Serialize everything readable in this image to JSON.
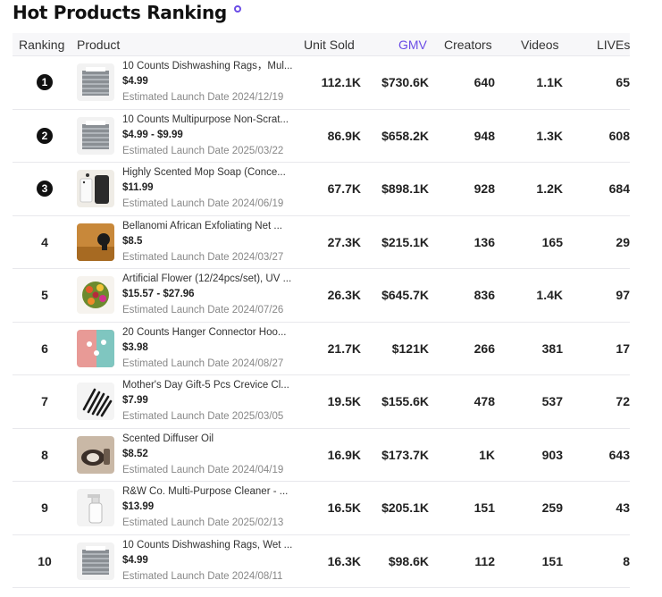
{
  "title": "Hot Products Ranking",
  "columns": {
    "ranking": "Ranking",
    "product": "Product",
    "unit_sold": "Unit Sold",
    "gmv": "GMV",
    "creators": "Creators",
    "videos": "Videos",
    "lives": "LIVEs"
  },
  "colors": {
    "accent": "#6b4de6"
  },
  "rows": [
    {
      "rank": "1",
      "name": "10 Counts Dishwashing Rags，Mul...",
      "price": "$4.99",
      "date": "Estimated Launch Date 2024/12/19",
      "unit_sold": "112.1K",
      "gmv": "$730.6K",
      "creators": "640",
      "videos": "1.1K",
      "lives": "65",
      "thumb": "rags"
    },
    {
      "rank": "2",
      "name": "10 Counts Multipurpose Non-Scrat...",
      "price": "$4.99 - $9.99",
      "date": "Estimated Launch Date 2025/03/22",
      "unit_sold": "86.9K",
      "gmv": "$658.2K",
      "creators": "948",
      "videos": "1.3K",
      "lives": "608",
      "thumb": "rags"
    },
    {
      "rank": "3",
      "name": "Highly Scented Mop Soap (Conce...",
      "price": "$11.99",
      "date": "Estimated Launch Date 2024/06/19",
      "unit_sold": "67.7K",
      "gmv": "$898.1K",
      "creators": "928",
      "videos": "1.2K",
      "lives": "684",
      "thumb": "soap"
    },
    {
      "rank": "4",
      "name": "Bellanomi African Exfoliating Net ...",
      "price": "$8.5",
      "date": "Estimated Launch Date 2024/03/27",
      "unit_sold": "27.3K",
      "gmv": "$215.1K",
      "creators": "136",
      "videos": "165",
      "lives": "29",
      "thumb": "net"
    },
    {
      "rank": "5",
      "name": "Artificial Flower (12/24pcs/set), UV ...",
      "price": "$15.57 - $27.96",
      "date": "Estimated Launch Date 2024/07/26",
      "unit_sold": "26.3K",
      "gmv": "$645.7K",
      "creators": "836",
      "videos": "1.4K",
      "lives": "97",
      "thumb": "flower"
    },
    {
      "rank": "6",
      "name": "20 Counts Hanger Connector Hoo...",
      "price": "$3.98",
      "date": "Estimated Launch Date 2024/08/27",
      "unit_sold": "21.7K",
      "gmv": "$121K",
      "creators": "266",
      "videos": "381",
      "lives": "17",
      "thumb": "hanger"
    },
    {
      "rank": "7",
      "name": "Mother's Day Gift-5 Pcs Crevice Cl...",
      "price": "$7.99",
      "date": "Estimated Launch Date 2025/03/05",
      "unit_sold": "19.5K",
      "gmv": "$155.6K",
      "creators": "478",
      "videos": "537",
      "lives": "72",
      "thumb": "brush"
    },
    {
      "rank": "8",
      "name": "Scented Diffuser Oil",
      "price": "$8.52",
      "date": "Estimated Launch Date 2024/04/19",
      "unit_sold": "16.9K",
      "gmv": "$173.7K",
      "creators": "1K",
      "videos": "903",
      "lives": "643",
      "thumb": "cat"
    },
    {
      "rank": "9",
      "name": "R&W Co. Multi-Purpose Cleaner - ...",
      "price": "$13.99",
      "date": "Estimated Launch Date 2025/02/13",
      "unit_sold": "16.5K",
      "gmv": "$205.1K",
      "creators": "151",
      "videos": "259",
      "lives": "43",
      "thumb": "spray"
    },
    {
      "rank": "10",
      "name": "10 Counts Dishwashing Rags, Wet ...",
      "price": "$4.99",
      "date": "Estimated Launch Date 2024/08/11",
      "unit_sold": "16.3K",
      "gmv": "$98.6K",
      "creators": "112",
      "videos": "151",
      "lives": "8",
      "thumb": "rags"
    }
  ]
}
